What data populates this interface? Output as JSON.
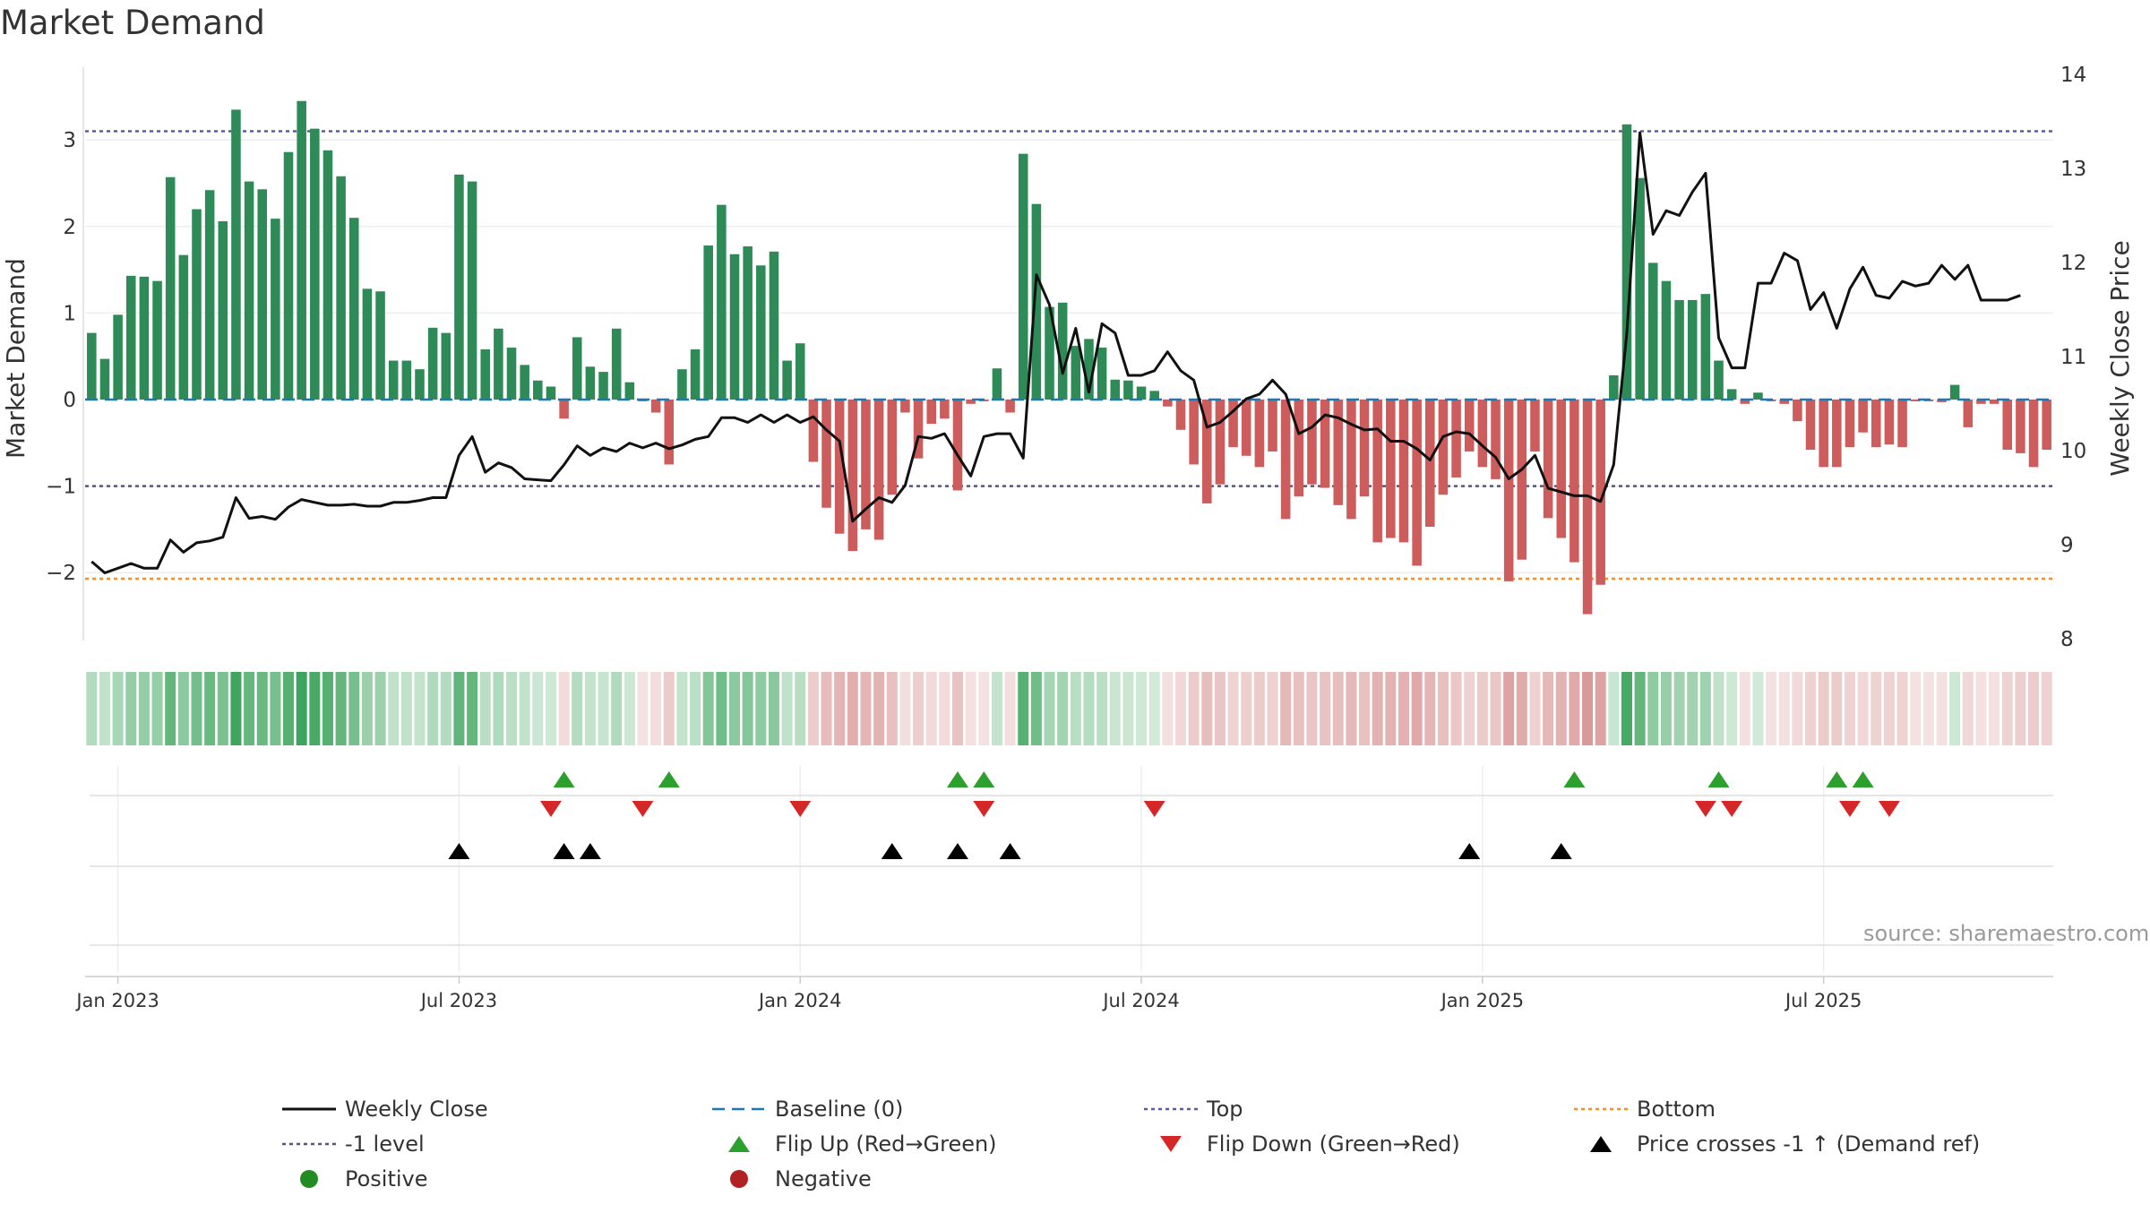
{
  "chart_data": {
    "type": "bar+line",
    "title": "Market Demand",
    "ylabel_left": "Market Demand",
    "ylabel_right": "Weekly Close Price",
    "ylim_left": [
      -2.8,
      3.5
    ],
    "ylim_right": [
      8,
      14
    ],
    "yticks_left": [
      3,
      2,
      1,
      0,
      -1,
      -2
    ],
    "yticks_left_labels": [
      "3",
      "2",
      "1",
      "0",
      "−1",
      "−2"
    ],
    "yticks_right": [
      14,
      13,
      12,
      11,
      10,
      9,
      8
    ],
    "yticks_right_labels": [
      "14",
      "13",
      "12",
      "11",
      "10",
      "9",
      "8"
    ],
    "x_ticks": [
      {
        "label": "Jan 2023",
        "week": 2
      },
      {
        "label": "Jul 2023",
        "week": 28
      },
      {
        "label": "Jan 2024",
        "week": 54
      },
      {
        "label": "Jul 2024",
        "week": 80
      },
      {
        "label": "Jan 2025",
        "week": 106
      },
      {
        "label": "Jul 2025",
        "week": 132
      }
    ],
    "reference_lines": {
      "top": 3.1,
      "minus1": -1.0,
      "bottom": -2.07,
      "baseline": 0
    },
    "demand": [
      0.77,
      0.47,
      0.98,
      1.43,
      1.42,
      1.37,
      2.57,
      1.67,
      2.2,
      2.42,
      2.06,
      3.35,
      2.52,
      2.43,
      2.09,
      2.86,
      3.45,
      3.13,
      2.88,
      2.58,
      2.1,
      1.28,
      1.25,
      0.45,
      0.45,
      0.35,
      0.83,
      0.77,
      2.6,
      2.52,
      0.58,
      0.82,
      0.6,
      0.4,
      0.22,
      0.15,
      -0.22,
      0.72,
      0.38,
      0.32,
      0.82,
      0.2,
      -0.02,
      -0.15,
      -0.75,
      0.35,
      0.58,
      1.78,
      2.25,
      1.68,
      1.77,
      1.55,
      1.71,
      0.45,
      0.65,
      -0.72,
      -1.25,
      -1.55,
      -1.75,
      -1.5,
      -1.62,
      -1.1,
      -0.15,
      -0.68,
      -0.28,
      -0.22,
      -1.05,
      -0.05,
      -0.02,
      0.36,
      -0.15,
      2.84,
      2.26,
      1.07,
      1.12,
      0.62,
      0.7,
      0.6,
      0.23,
      0.22,
      0.15,
      0.1,
      -0.08,
      -0.35,
      -0.75,
      -1.2,
      -0.98,
      -0.55,
      -0.65,
      -0.78,
      -0.6,
      -1.38,
      -1.12,
      -0.98,
      -1.02,
      -1.22,
      -1.38,
      -1.12,
      -1.65,
      -1.6,
      -1.65,
      -1.92,
      -1.47,
      -1.1,
      -0.9,
      -0.6,
      -0.78,
      -0.92,
      -2.1,
      -1.85,
      -0.6,
      -1.37,
      -1.6,
      -1.88,
      -2.48,
      -2.14,
      0.28,
      3.18,
      2.56,
      1.58,
      1.37,
      1.15,
      1.15,
      1.22,
      0.45,
      0.12,
      -0.05,
      0.08,
      -0.02,
      -0.05,
      -0.25,
      -0.58,
      -0.78,
      -0.78,
      -0.55,
      -0.38,
      -0.55,
      -0.52,
      -0.55,
      -0.02,
      -0.02,
      -0.03,
      0.17,
      -0.32,
      -0.05,
      -0.05,
      -0.58,
      -0.62,
      -0.78,
      -0.58
    ],
    "weekly_close": [
      8.82,
      8.7,
      8.75,
      8.8,
      8.75,
      8.75,
      9.05,
      8.92,
      9.02,
      9.04,
      9.08,
      9.5,
      9.28,
      9.3,
      9.27,
      9.4,
      9.48,
      9.45,
      9.42,
      9.42,
      9.43,
      9.41,
      9.41,
      9.45,
      9.45,
      9.47,
      9.5,
      9.5,
      9.95,
      10.15,
      9.77,
      9.87,
      9.82,
      9.7,
      9.69,
      9.68,
      9.85,
      10.05,
      9.95,
      10.03,
      9.99,
      10.08,
      10.03,
      10.08,
      10.02,
      10.06,
      10.12,
      10.15,
      10.35,
      10.35,
      10.3,
      10.38,
      10.3,
      10.38,
      10.3,
      10.36,
      10.22,
      10.1,
      9.25,
      9.38,
      9.5,
      9.45,
      9.63,
      10.15,
      10.13,
      10.18,
      9.95,
      9.73,
      10.15,
      10.18,
      10.18,
      9.92,
      11.87,
      11.55,
      10.82,
      11.3,
      10.62,
      11.35,
      11.25,
      10.8,
      10.8,
      10.85,
      11.05,
      10.85,
      10.75,
      10.25,
      10.3,
      10.42,
      10.55,
      10.6,
      10.75,
      10.6,
      10.18,
      10.25,
      10.38,
      10.35,
      10.28,
      10.22,
      10.23,
      10.1,
      10.1,
      10.02,
      9.9,
      10.15,
      10.2,
      10.18,
      10.05,
      9.93,
      9.7,
      9.8,
      9.95,
      9.6,
      9.56,
      9.52,
      9.52,
      9.46,
      9.85,
      11.25,
      13.38,
      12.3,
      12.55,
      12.5,
      12.75,
      12.95,
      11.2,
      10.88,
      10.88,
      11.78,
      11.78,
      12.1,
      12.02,
      11.5,
      11.68,
      11.3,
      11.72,
      11.95,
      11.65,
      11.62,
      11.8,
      11.75,
      11.78,
      11.97,
      11.82,
      11.97,
      11.6,
      11.6,
      11.6,
      11.65
    ],
    "flip_up_weeks": [
      36,
      44,
      66,
      68,
      113,
      124,
      133,
      135
    ],
    "flip_down_weeks": [
      35,
      42,
      54,
      68,
      81,
      123,
      125,
      134,
      137
    ],
    "price_cross_weeks": [
      28,
      36,
      38,
      61,
      66,
      70,
      105,
      112
    ],
    "legend": [
      {
        "label": "Weekly Close",
        "kind": "line-solid",
        "color": "#111111"
      },
      {
        "label": "Baseline (0)",
        "kind": "line-dashed",
        "color": "#1f77b4"
      },
      {
        "label": "Top",
        "kind": "line-dotted",
        "color": "#5a5aa8"
      },
      {
        "label": "Bottom",
        "kind": "line-dotted",
        "color": "#ff8c1a"
      },
      {
        "label": "-1 level",
        "kind": "line-dotted",
        "color": "#555577"
      },
      {
        "label": "Flip Up (Red→Green)",
        "kind": "triangle-up",
        "color": "#2ca02c"
      },
      {
        "label": "Flip Down (Green→Red)",
        "kind": "triangle-down",
        "color": "#d62728"
      },
      {
        "label": "Price crosses -1 ↑ (Demand ref)",
        "kind": "triangle-up",
        "color": "#000000"
      },
      {
        "label": "Positive",
        "kind": "circle",
        "color": "#228b22"
      },
      {
        "label": "Negative",
        "kind": "circle",
        "color": "#b22222"
      }
    ],
    "legend_position": "bottom",
    "source": "source: sharemaestro.com",
    "colors": {
      "positive_bar": "#2e8b57",
      "negative_bar": "#cd5c5c",
      "heat_positive": "#3aa35a",
      "heat_negative": "#cf7a7a",
      "flip_up": "#2ca02c",
      "flip_down": "#d62728",
      "cross": "#000000",
      "line": "#111111",
      "top_line": "#5a5aa8",
      "bottom_line": "#ff8c1a",
      "minus1_line": "#555577",
      "baseline": "#1f77b4"
    }
  }
}
